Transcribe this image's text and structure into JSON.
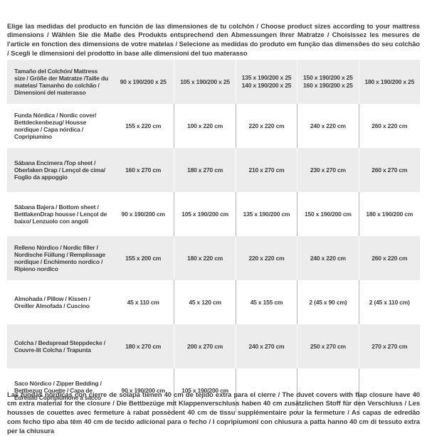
{
  "intro": "Elige las medidas del producto en función de las dimensiones de tu colchón / Choose product sizes according to your mattress dimensions / Wählen Sie die Maße des Produkts entsprechend den Abmessungen Ihrer Matratze / Choisissez les mesures de l'article en fonction des dimensions de votre matelas / Selecione as medidas do produto em função das dimensões do seu colchão / Scegli le dimensioni del prodotto in base alle dimensioni del tuo materasso",
  "footnote": "Las fundas nórdicas con cierre de solapa tienen 40 cm de tejido extra para el cierre  /  The duvet covers with flap closure have 40 cm extra material for the closure / Die Bettbezüge mit Klappenverschluss haben 40 cm zusätzlichen Stoff für den Verschluss / Les housses de couettes avec fermeture à rabat possèdent 40 cm de tissu supplémentaire pour la fermeture / As capas de edredão com fecho tipo aba têm 40 cm de tecido adicional para o fecho / I copripiumoni con chiusura a patta hanno 40 cm di tessuto extra per la chiusura",
  "colors": {
    "row_stripe": "#ececec",
    "text": "#3d3d3d",
    "divider_on_white": "#b3b3b3",
    "divider_on_gray": "#ffffff"
  },
  "table": {
    "rows": [
      {
        "label": "Tamaño del Colchón/ Mattress size / Größe der Matratze /Taille du matelas/ Tamanho do colchão / Dimensioni del materasso",
        "cells": [
          "90 x 190/200 x 25",
          "105 x 190/200 x 25",
          "135 x 190/200 x 25\n140 x 190/200 x 25",
          "150 x 190/200 x 25\n160 x 190/200 x 25",
          "180 x 190/200 x 25"
        ]
      },
      {
        "label": "Funda Nórdica /  Nordic cover/ Bettdeckenbezug/ Housse nordique  / Capa nórdica / Copripiumino",
        "cells": [
          "155 x 220 cm",
          "100 x 220 cm",
          "220 x 220 cm",
          "240 x 220 cm",
          "260 x 220 cm"
        ]
      },
      {
        "label": "Sábana Encimera /Top sheet / Oberlaken Drap / Lençol de cima/ Foglio da appoggio",
        "cells": [
          "160 x 270 cm",
          "180 x 270 cm",
          "210 x 270 cm",
          "230 x 270 cm",
          "260 x 270 cm"
        ]
      },
      {
        "label": "Sábana Bajera / Bottom sheet / BettlakenDrap housse / Lençol de baixo/ Lenzuolo con angoli",
        "cells": [
          "90 x 190/200 cm",
          "105 x 190/200 cm",
          "135 x 190/200 cm",
          "150 x 190/200 cm",
          "180 x 190/200 cm"
        ]
      },
      {
        "label": "Relleno Nórdico / Nordic filler / Nordische Füllung / Remplissage nordique / Enchimento nordico / Ripieno nordico",
        "cells": [
          "155 x 200 cm",
          "180 x 220 cm",
          "220 x 220 cm",
          "240 x 220 cm",
          "260 x 220 cm"
        ]
      },
      {
        "label": "Almohada  / Pillow / Kissen / Oreiller Almofada / Cuscino",
        "cells": [
          "45 x 110 cm",
          "45 x 120 cm",
          "45 x 155 cm",
          "2 (45 x 90 cm)",
          "2 (45 x 110 cm)"
        ]
      },
      {
        "label": "Colcha / Bedspread Steppdecke / Couvre-lit Colcha / Trapunta",
        "cells": [
          "180 x 270 cm",
          "200 x 270 cm",
          "240 x 270 cm",
          "250 x 270 cm",
          "270 x 270 cm"
        ]
      },
      {
        "label": "Saco Nórdico / Zipper Bedding / Bettbezug Couette  / Capa de Edredão Copripiumone a sacco",
        "cells": [
          "90 x 190/200 cm",
          "105 x 190/200 cm",
          "",
          "",
          ""
        ]
      }
    ]
  }
}
